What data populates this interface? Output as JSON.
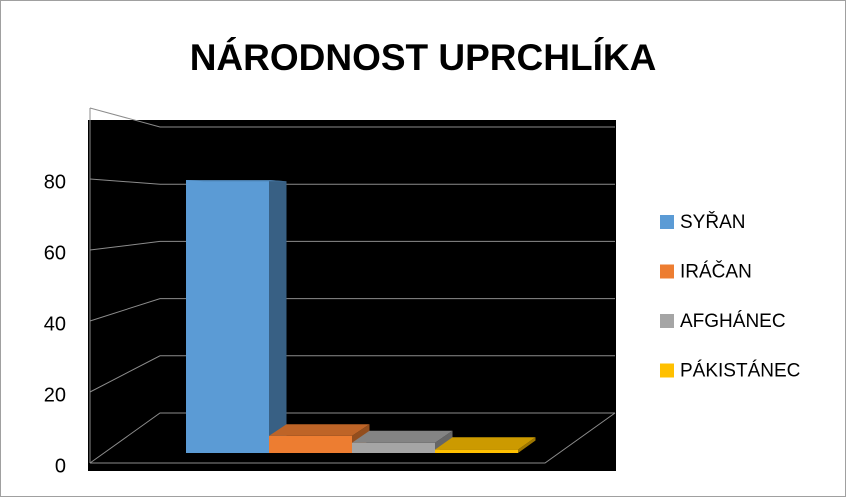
{
  "chart_data": {
    "type": "bar3d",
    "title": "NÁRODNOST UPRCHLÍKA",
    "categories": [
      null
    ],
    "series": [
      {
        "name": "SYŘAN",
        "color": "#5b9bd5",
        "values": [
          80
        ]
      },
      {
        "name": "IRÁČAN",
        "color": "#ed7d31",
        "values": [
          5
        ]
      },
      {
        "name": "AFGHÁNEC",
        "color": "#a5a5a5",
        "values": [
          3
        ]
      },
      {
        "name": "PÁKISTÁNEC",
        "color": "#ffc000",
        "values": [
          1
        ]
      }
    ],
    "ylim": [
      0,
      100
    ],
    "yticks": [
      0,
      20,
      40,
      60,
      80
    ],
    "grid": true,
    "legend": "right"
  }
}
